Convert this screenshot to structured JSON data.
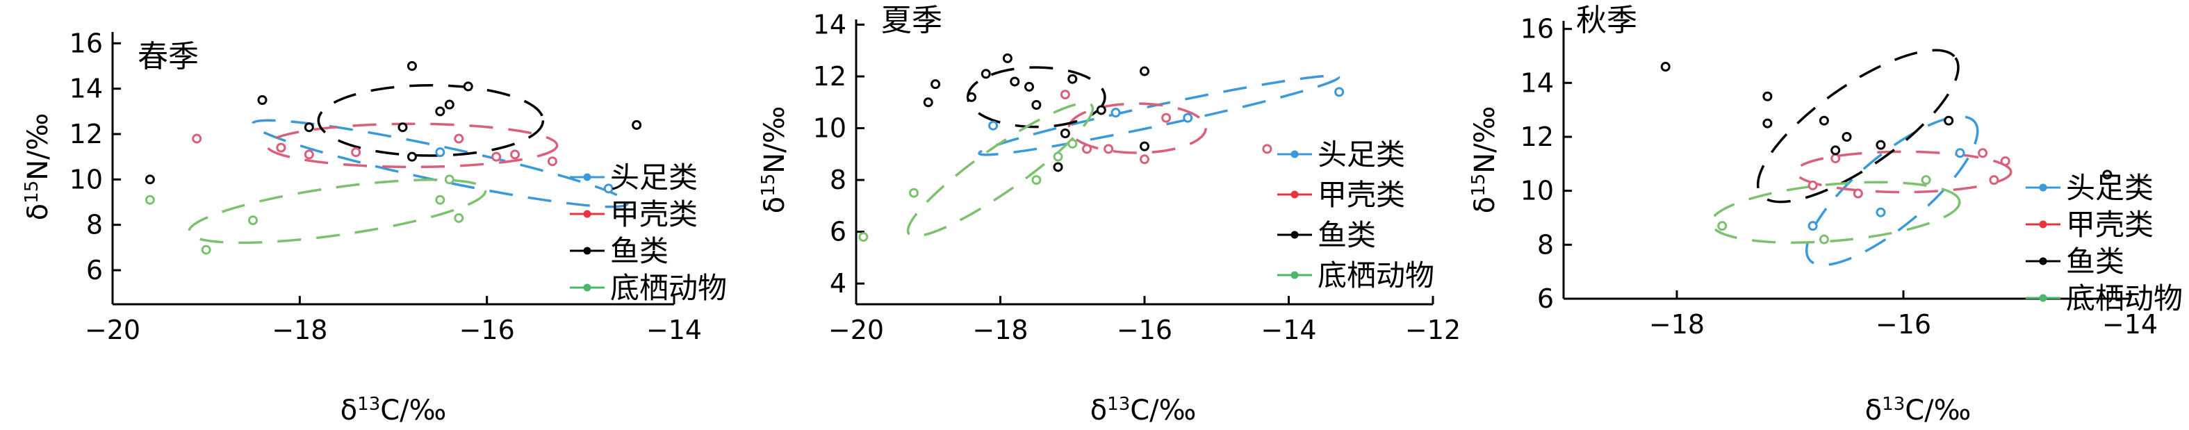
{
  "legend_colors": {
    "头足类": "#3a9ad9",
    "甲壳类": "#e8343e",
    "鱼类": "#000000",
    "底栖动物": "#4cb86a"
  },
  "point_colors": {
    "头足类": "#3a9ad9",
    "甲壳类": "#d9607a",
    "鱼类": "#000000",
    "底栖动物": "#7cc26e"
  },
  "chart_data": [
    {
      "type": "scatter",
      "title": "春季",
      "xlabel": "δ13C/‰",
      "ylabel": "δ15N/‰",
      "xlim": [
        -20,
        -14
      ],
      "ylim": [
        4.5,
        16.5
      ],
      "xticks": [
        -20,
        -18,
        -16,
        -14
      ],
      "xtick_labels": [
        "−20",
        "−18",
        "−16",
        "−14"
      ],
      "yticks": [
        6,
        8,
        10,
        12,
        14,
        16
      ],
      "ytick_labels": [
        "6",
        "8",
        "10",
        "12",
        "14",
        "16"
      ],
      "legend": [
        "头足类",
        "甲壳类",
        "鱼类",
        "底栖动物"
      ],
      "legend_placement": "right",
      "series": [
        {
          "name": "头足类",
          "points": [
            [
              -18.2,
              11.4
            ],
            [
              -16.5,
              11.2
            ],
            [
              -14.7,
              9.6
            ]
          ]
        },
        {
          "name": "甲壳类",
          "points": [
            [
              -19.1,
              11.8
            ],
            [
              -18.2,
              11.4
            ],
            [
              -17.9,
              11.1
            ],
            [
              -17.4,
              11.2
            ],
            [
              -16.3,
              11.8
            ],
            [
              -15.9,
              11.0
            ],
            [
              -15.7,
              11.1
            ],
            [
              -15.3,
              10.8
            ]
          ]
        },
        {
          "name": "鱼类",
          "points": [
            [
              -19.6,
              10.0
            ],
            [
              -18.4,
              13.5
            ],
            [
              -17.9,
              12.3
            ],
            [
              -16.9,
              12.3
            ],
            [
              -16.8,
              15.0
            ],
            [
              -16.5,
              13.0
            ],
            [
              -16.4,
              13.3
            ],
            [
              -16.2,
              14.1
            ],
            [
              -16.8,
              11.0
            ],
            [
              -14.4,
              12.4
            ]
          ]
        },
        {
          "name": "底栖动物",
          "points": [
            [
              -19.6,
              9.1
            ],
            [
              -19.0,
              6.9
            ],
            [
              -18.5,
              8.2
            ],
            [
              -16.5,
              9.1
            ],
            [
              -16.3,
              8.3
            ],
            [
              -16.4,
              10.0
            ]
          ]
        }
      ],
      "ellipses": [
        {
          "name": "头足类",
          "center": [
            -16.5,
            10.7
          ],
          "semi_axes": [
            2.05,
            0.75
          ],
          "angle": -12
        },
        {
          "name": "甲壳类",
          "center": [
            -16.8,
            11.5
          ],
          "semi_axes": [
            1.55,
            0.95
          ],
          "angle": 0
        },
        {
          "name": "鱼类",
          "center": [
            -16.6,
            12.6
          ],
          "semi_axes": [
            1.2,
            1.55
          ],
          "angle": 0
        },
        {
          "name": "底栖动物",
          "center": [
            -17.6,
            8.6
          ],
          "semi_axes": [
            1.6,
            1.05
          ],
          "angle": 8
        }
      ]
    },
    {
      "type": "scatter",
      "title": "夏季",
      "xlabel": "δ13C/‰",
      "ylabel": "δ15N/‰",
      "xlim": [
        -20,
        -12
      ],
      "ylim": [
        3.2,
        14.2
      ],
      "xticks": [
        -20,
        -18,
        -16,
        -14,
        -12
      ],
      "xtick_labels": [
        "−20",
        "−18",
        "−16",
        "−14",
        "−12"
      ],
      "yticks": [
        4,
        6,
        8,
        10,
        12,
        14
      ],
      "ytick_labels": [
        "4",
        "6",
        "8",
        "10",
        "12",
        "14"
      ],
      "legend": [
        "头足类",
        "甲壳类",
        "鱼类",
        "底栖动物"
      ],
      "legend_placement": "right",
      "series": [
        {
          "name": "头足类",
          "points": [
            [
              -18.1,
              10.1
            ],
            [
              -16.4,
              10.6
            ],
            [
              -15.4,
              10.4
            ],
            [
              -13.3,
              11.4
            ]
          ]
        },
        {
          "name": "甲壳类",
          "points": [
            [
              -17.1,
              11.3
            ],
            [
              -16.8,
              9.2
            ],
            [
              -16.5,
              9.2
            ],
            [
              -16.0,
              8.8
            ],
            [
              -15.7,
              10.4
            ],
            [
              -14.3,
              9.2
            ]
          ]
        },
        {
          "name": "鱼类",
          "points": [
            [
              -19.0,
              11.0
            ],
            [
              -18.9,
              11.7
            ],
            [
              -18.4,
              11.2
            ],
            [
              -18.2,
              12.1
            ],
            [
              -17.9,
              12.7
            ],
            [
              -17.8,
              11.8
            ],
            [
              -17.6,
              11.6
            ],
            [
              -17.5,
              10.9
            ],
            [
              -17.1,
              9.8
            ],
            [
              -17.0,
              11.9
            ],
            [
              -16.6,
              10.7
            ],
            [
              -16.0,
              12.2
            ],
            [
              -16.0,
              9.3
            ],
            [
              -17.2,
              8.5
            ]
          ]
        },
        {
          "name": "底栖动物",
          "points": [
            [
              -19.9,
              5.8
            ],
            [
              -19.2,
              7.5
            ],
            [
              -17.5,
              8.0
            ],
            [
              -17.2,
              8.9
            ],
            [
              -17.0,
              9.4
            ]
          ]
        }
      ],
      "ellipses": [
        {
          "name": "头足类",
          "center": [
            -15.8,
            10.5
          ],
          "semi_axes": [
            2.55,
            0.4
          ],
          "angle": 12
        },
        {
          "name": "甲壳类",
          "center": [
            -16.1,
            10.0
          ],
          "semi_axes": [
            0.95,
            0.95
          ],
          "angle": 0
        },
        {
          "name": "鱼类",
          "center": [
            -17.5,
            11.2
          ],
          "semi_axes": [
            0.95,
            1.15
          ],
          "angle": 0
        },
        {
          "name": "底栖动物",
          "center": [
            -18.0,
            8.4
          ],
          "semi_axes": [
            1.55,
            0.85
          ],
          "angle": 35
        }
      ]
    },
    {
      "type": "scatter",
      "title": "秋季",
      "xlabel": "δ13C/‰",
      "ylabel": "δ15N/‰",
      "xlim": [
        -19,
        -14
      ],
      "ylim": [
        6,
        16.3
      ],
      "xticks": [
        -18,
        -16,
        -14
      ],
      "xtick_labels": [
        "−18",
        "−16",
        "−14"
      ],
      "yticks": [
        6,
        8,
        10,
        12,
        14,
        16
      ],
      "ytick_labels": [
        "6",
        "8",
        "10",
        "12",
        "14",
        "16"
      ],
      "legend": [
        "头足类",
        "甲壳类",
        "鱼类",
        "底栖动物"
      ],
      "legend_placement": "right",
      "series": [
        {
          "name": "头足类",
          "points": [
            [
              -16.8,
              8.7
            ],
            [
              -16.4,
              9.9
            ],
            [
              -16.2,
              9.2
            ],
            [
              -15.5,
              11.4
            ]
          ]
        },
        {
          "name": "甲壳类",
          "points": [
            [
              -16.8,
              10.2
            ],
            [
              -16.6,
              11.2
            ],
            [
              -16.4,
              9.9
            ],
            [
              -15.3,
              11.4
            ],
            [
              -15.2,
              10.4
            ],
            [
              -15.1,
              11.1
            ]
          ]
        },
        {
          "name": "鱼类",
          "points": [
            [
              -18.1,
              14.6
            ],
            [
              -17.2,
              13.5
            ],
            [
              -17.2,
              12.5
            ],
            [
              -16.7,
              12.6
            ],
            [
              -16.6,
              11.5
            ],
            [
              -16.5,
              12.0
            ],
            [
              -16.2,
              11.7
            ],
            [
              -15.6,
              12.6
            ],
            [
              -14.2,
              10.6
            ]
          ]
        },
        {
          "name": "底栖动物",
          "points": [
            [
              -17.6,
              8.7
            ],
            [
              -16.7,
              8.2
            ],
            [
              -15.8,
              10.4
            ]
          ]
        }
      ],
      "ellipses": [
        {
          "name": "头足类",
          "center": [
            -16.1,
            10.0
          ],
          "semi_axes": [
            0.95,
            1.3
          ],
          "angle": 40
        },
        {
          "name": "甲壳类",
          "center": [
            -16.0,
            10.7
          ],
          "semi_axes": [
            0.95,
            0.75
          ],
          "angle": 0
        },
        {
          "name": "鱼类",
          "center": [
            -16.4,
            12.4
          ],
          "semi_axes": [
            1.05,
            1.5
          ],
          "angle": 35
        },
        {
          "name": "底栖动物",
          "center": [
            -16.6,
            9.2
          ],
          "semi_axes": [
            1.1,
            1.05
          ],
          "angle": 5
        }
      ]
    }
  ]
}
